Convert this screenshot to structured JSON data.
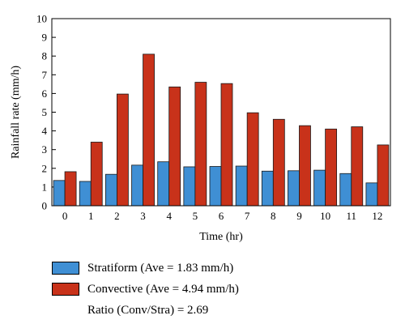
{
  "chart_data": {
    "type": "bar",
    "xlabel": "Time (hr)",
    "ylabel": "Rainfall rate (mm/h)",
    "ylim": [
      0,
      10
    ],
    "yticks": [
      0,
      1,
      2,
      3,
      4,
      5,
      6,
      7,
      8,
      9,
      10
    ],
    "categories": [
      "0",
      "1",
      "2",
      "3",
      "4",
      "5",
      "6",
      "7",
      "8",
      "9",
      "10",
      "11",
      "12"
    ],
    "grid": false,
    "legend_placement": "bottom",
    "series": [
      {
        "name": "Stratiform (Ave = 1.83 mm/h)",
        "color": "#3f8fd4",
        "values": [
          1.35,
          1.3,
          1.68,
          2.17,
          2.35,
          2.08,
          2.1,
          2.12,
          1.85,
          1.87,
          1.9,
          1.72,
          1.22
        ]
      },
      {
        "name": "Convective (Ave = 4.94 mm/h)",
        "color": "#c8321a",
        "values": [
          1.82,
          3.4,
          5.97,
          8.1,
          6.35,
          6.6,
          6.53,
          4.97,
          4.62,
          4.28,
          4.1,
          4.22,
          3.25
        ]
      }
    ],
    "annotation": "Ratio (Conv/Stra) = 2.69"
  }
}
